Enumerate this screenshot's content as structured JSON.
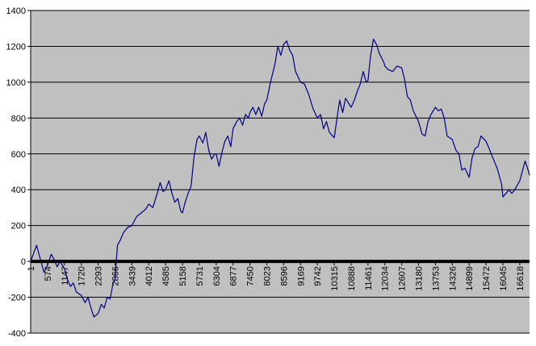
{
  "chart_data": {
    "type": "line",
    "title": "",
    "xlabel": "",
    "ylabel": "",
    "ylim": [
      -400,
      1400
    ],
    "yticks": [
      -400,
      -200,
      0,
      200,
      400,
      600,
      800,
      1000,
      1200,
      1400
    ],
    "xlim": [
      1,
      16950
    ],
    "xticks": [
      1,
      574,
      1147,
      1720,
      2293,
      2866,
      3439,
      4012,
      4585,
      5158,
      5731,
      6304,
      6877,
      7450,
      8023,
      8596,
      9169,
      9742,
      10315,
      10888,
      11461,
      12034,
      12607,
      13180,
      13753,
      14326,
      14899,
      15472,
      16045,
      16618
    ],
    "xtick_labels": [
      "1",
      "574",
      "1147",
      "1720",
      "2293",
      "2866",
      "3439",
      "4012",
      "4585",
      "5158",
      "5731",
      "6304",
      "6877",
      "7450",
      "8023",
      "8596",
      "9169",
      "9742",
      "10315",
      "10888",
      "11461",
      "12034",
      "12607",
      "13180",
      "13753",
      "14326",
      "14899",
      "15472",
      "16045",
      "16618"
    ],
    "grid": true,
    "background": "#c0c0c0",
    "line_color": "#000080",
    "series": [
      {
        "x": [
          1,
          200,
          300,
          450,
          574,
          700,
          800,
          900,
          1000,
          1147,
          1250,
          1350,
          1450,
          1550,
          1720,
          1850,
          1950,
          2050,
          2150,
          2293,
          2400,
          2500,
          2600,
          2700,
          2800,
          2866,
          2950,
          3050,
          3150,
          3300,
          3439,
          3600,
          3750,
          3900,
          4012,
          4150,
          4300,
          4400,
          4500,
          4585,
          4700,
          4800,
          4900,
          5000,
          5100,
          5158,
          5250,
          5350,
          5450,
          5550,
          5650,
          5731,
          5850,
          5950,
          6050,
          6150,
          6250,
          6304,
          6400,
          6500,
          6600,
          6700,
          6800,
          6877,
          7000,
          7100,
          7200,
          7300,
          7400,
          7450,
          7550,
          7650,
          7750,
          7850,
          7950,
          8023,
          8150,
          8300,
          8400,
          8500,
          8596,
          8700,
          8800,
          8900,
          9000,
          9169,
          9300,
          9450,
          9600,
          9742,
          9850,
          9950,
          10050,
          10150,
          10315,
          10400,
          10500,
          10600,
          10700,
          10888,
          11000,
          11100,
          11200,
          11300,
          11400,
          11461,
          11550,
          11650,
          11750,
          11850,
          12000,
          12034,
          12150,
          12300,
          12450,
          12607,
          12700,
          12800,
          12900,
          13000,
          13180,
          13300,
          13400,
          13500,
          13600,
          13753,
          13850,
          13950,
          14050,
          14150,
          14326,
          14450,
          14550,
          14650,
          14750,
          14899,
          15000,
          15100,
          15200,
          15300,
          15472,
          15550,
          15650,
          15750,
          15850,
          16000,
          16045,
          16150,
          16250,
          16350,
          16450,
          16618,
          16700,
          16800,
          16900,
          16950
        ],
        "values": [
          0,
          90,
          30,
          -60,
          -20,
          40,
          10,
          -30,
          0,
          -40,
          -100,
          -140,
          -120,
          -170,
          -190,
          -230,
          -200,
          -260,
          -310,
          -290,
          -240,
          -260,
          -200,
          -210,
          -120,
          -100,
          90,
          120,
          160,
          190,
          200,
          250,
          270,
          290,
          320,
          300,
          380,
          440,
          390,
          400,
          450,
          380,
          330,
          350,
          280,
          270,
          330,
          380,
          420,
          580,
          680,
          700,
          660,
          720,
          620,
          570,
          600,
          600,
          530,
          610,
          670,
          700,
          640,
          740,
          780,
          800,
          760,
          820,
          800,
          830,
          860,
          820,
          860,
          810,
          880,
          900,
          1000,
          1100,
          1200,
          1150,
          1210,
          1230,
          1180,
          1150,
          1060,
          1000,
          990,
          930,
          850,
          800,
          820,
          740,
          780,
          720,
          690,
          790,
          900,
          830,
          910,
          860,
          900,
          950,
          990,
          1060,
          1000,
          1010,
          1150,
          1240,
          1210,
          1160,
          1110,
          1090,
          1070,
          1060,
          1090,
          1080,
          1020,
          920,
          900,
          840,
          780,
          710,
          700,
          780,
          820,
          860,
          840,
          850,
          800,
          700,
          680,
          620,
          600,
          510,
          520,
          470,
          580,
          630,
          640,
          700,
          670,
          640,
          600,
          560,
          520,
          430,
          360,
          380,
          400,
          380,
          400,
          450,
          500,
          560,
          510,
          480
        ]
      }
    ]
  }
}
